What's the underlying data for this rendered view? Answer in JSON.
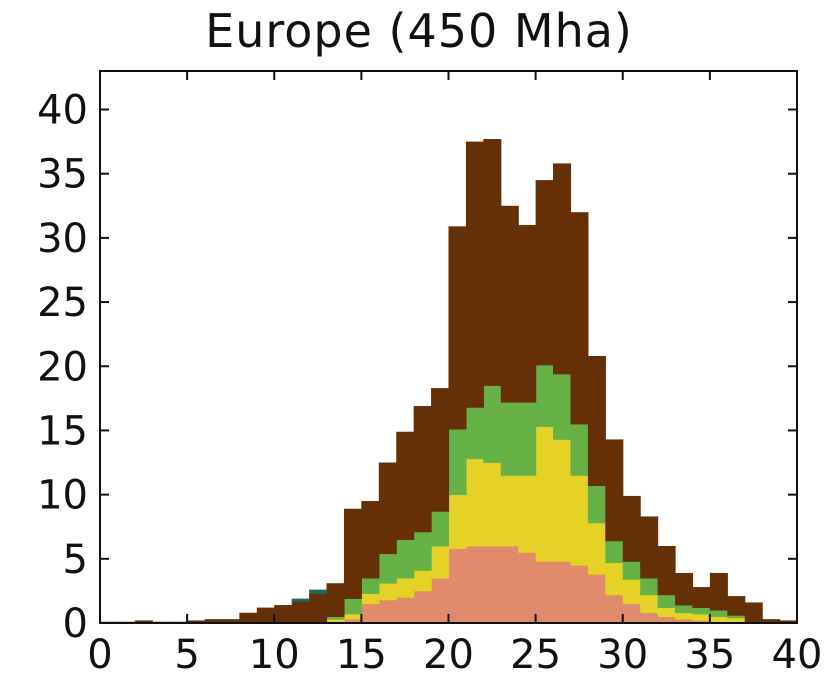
{
  "chart_data": {
    "type": "bar",
    "title": "Europe (450 Mha)",
    "xlabel": "",
    "ylabel": "",
    "xlim": [
      0,
      40
    ],
    "ylim": [
      0,
      43
    ],
    "xticks": [
      0,
      5,
      10,
      15,
      20,
      25,
      30,
      35,
      40
    ],
    "yticks": [
      0,
      5,
      10,
      15,
      20,
      25,
      30,
      35,
      40
    ],
    "bin_width": 1,
    "bin_starts": [
      0,
      1,
      2,
      3,
      4,
      5,
      6,
      7,
      8,
      9,
      10,
      11,
      12,
      13,
      14,
      15,
      16,
      17,
      18,
      19,
      20,
      21,
      22,
      23,
      24,
      25,
      26,
      27,
      28,
      29,
      30,
      31,
      32,
      33,
      34,
      35,
      36,
      37,
      38,
      39
    ],
    "series": [
      {
        "color": "#e08b6c",
        "values": [
          0,
          0,
          0,
          0,
          0,
          0,
          0,
          0,
          0,
          0,
          0,
          0,
          0,
          0.1,
          0.3,
          1.5,
          1.8,
          2.0,
          2.5,
          3.5,
          5.8,
          6.0,
          6.0,
          6.0,
          5.5,
          4.8,
          4.8,
          4.5,
          3.8,
          2.2,
          1.5,
          0.8,
          0.5,
          0.3,
          0.2,
          0.1,
          0.1,
          0,
          0,
          0
        ]
      },
      {
        "color": "#e4d227",
        "values": [
          0,
          0,
          0,
          0,
          0,
          0,
          0,
          0,
          0,
          0,
          0,
          0,
          0,
          0.2,
          0.4,
          0.8,
          1.3,
          1.5,
          1.6,
          2.5,
          4.2,
          6.8,
          6.5,
          5.5,
          6.0,
          10.5,
          9.5,
          7.0,
          4.0,
          2.5,
          1.9,
          1.4,
          0.7,
          0.5,
          0.5,
          0.4,
          0.3,
          0,
          0,
          0
        ]
      },
      {
        "color": "#66b247",
        "values": [
          0,
          0,
          0,
          0,
          0,
          0,
          0,
          0,
          0,
          0,
          0,
          0,
          0.1,
          0.2,
          1.2,
          1.2,
          2.3,
          3.0,
          3.0,
          2.7,
          5.1,
          4.0,
          6.0,
          5.7,
          5.7,
          4.8,
          5.1,
          4.0,
          2.9,
          1.7,
          1.4,
          1.3,
          1.0,
          0.6,
          0.5,
          0.5,
          0.2,
          0,
          0,
          0
        ]
      },
      {
        "color": "#653006",
        "values": [
          0.1,
          0.1,
          0.2,
          0.1,
          0.1,
          0.2,
          0.3,
          0.3,
          0.8,
          1.2,
          1.4,
          1.7,
          2.2,
          2.6,
          7.0,
          6.0,
          7.1,
          8.4,
          9.8,
          9.6,
          15.8,
          20.7,
          19.2,
          15.3,
          13.8,
          14.4,
          16.4,
          16.5,
          10.1,
          7.9,
          5.1,
          4.8,
          3.8,
          2.5,
          1.6,
          2.9,
          1.5,
          1.6,
          0.3,
          0.2
        ]
      },
      {
        "color": "#1c6b5e",
        "values": [
          0,
          0,
          0,
          0,
          0,
          0,
          0,
          0,
          0,
          0,
          0,
          0.2,
          0.3,
          0,
          0,
          0,
          0,
          0,
          0,
          0,
          0,
          0,
          0,
          0,
          0,
          0,
          0,
          0,
          0,
          0,
          0,
          0,
          0,
          0,
          0,
          0,
          0,
          0,
          0,
          0
        ]
      }
    ]
  }
}
